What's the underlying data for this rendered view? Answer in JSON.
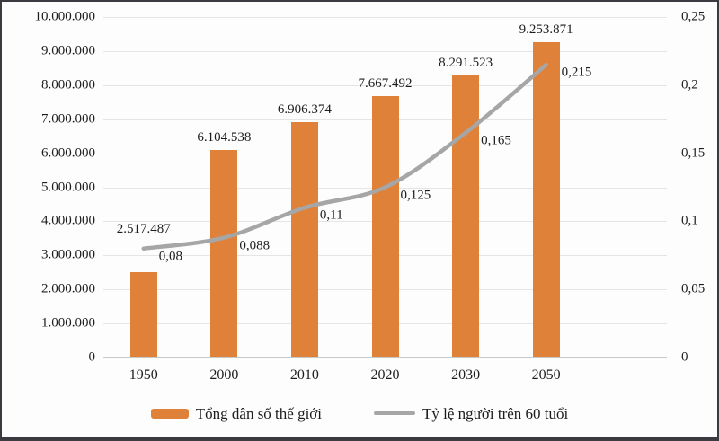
{
  "chart_data": {
    "type": "bar",
    "subtype": "combo-bar-line",
    "categories": [
      "1950",
      "2000",
      "2010",
      "2020",
      "2030",
      "2050"
    ],
    "series": [
      {
        "name": "Tổng dân số thế giới",
        "type": "bar",
        "axis": "left",
        "color": "#df8139",
        "values": [
          2517487,
          6104538,
          6906374,
          7667492,
          8291523,
          9253871
        ],
        "labels": [
          "2.517.487",
          "6.104.538",
          "6.906.374",
          "7.667.492",
          "8.291.523",
          "9.253.871"
        ]
      },
      {
        "name": "Tỷ lệ người trên 60 tuổi",
        "type": "line",
        "axis": "right",
        "color": "#a6a6a6",
        "values": [
          0.08,
          0.088,
          0.11,
          0.125,
          0.165,
          0.215
        ],
        "labels": [
          "0,08",
          "0,088",
          "0,11",
          "0,125",
          "0,165",
          "0,215"
        ]
      }
    ],
    "title": "",
    "xlabel": "",
    "ylabel": "",
    "left_axis": {
      "min": 0,
      "max": 10000000,
      "step": 1000000,
      "ticks": [
        "10.000.000",
        "9.000.000",
        "8.000.000",
        "7.000.000",
        "6.000.000",
        "5.000.000",
        "4.000.000",
        "3.000.000",
        "2.000.000",
        "1.000.000",
        "0"
      ]
    },
    "right_axis": {
      "min": 0,
      "max": 0.25,
      "step": 0.05,
      "ticks": [
        "0,25",
        "0,2",
        "0,15",
        "0,1",
        "0,05",
        "0"
      ]
    },
    "grid": true,
    "legend_position": "bottom",
    "text_color": "#1c1c1c",
    "gridline_color": "#e5e5e5"
  }
}
